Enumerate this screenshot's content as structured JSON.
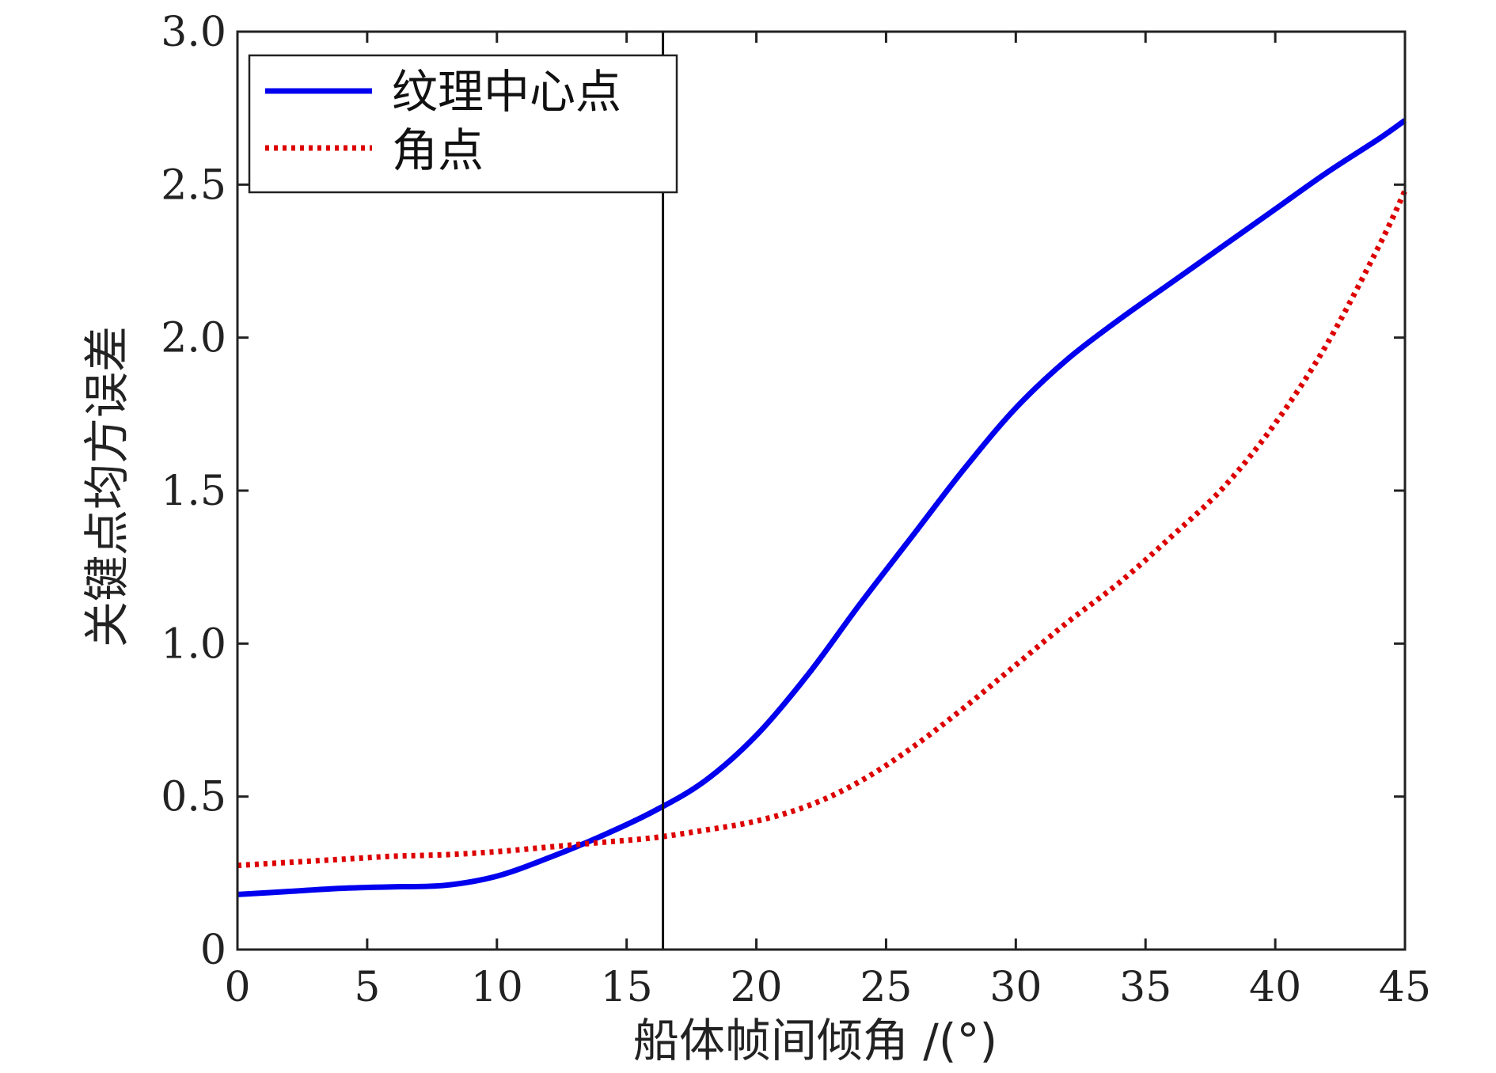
{
  "chart_data": {
    "type": "line",
    "xlabel": "船体帧间倾角 /(°)",
    "ylabel": "关键点均方误差",
    "xlim": [
      0,
      45
    ],
    "ylim": [
      0,
      3.0
    ],
    "xticks": [
      0,
      5,
      10,
      15,
      20,
      25,
      30,
      35,
      40,
      45
    ],
    "xtick_labels": [
      "0",
      "5",
      "10",
      "15",
      "20",
      "25",
      "30",
      "35",
      "40",
      "45"
    ],
    "yticks": [
      0,
      0.5,
      1.0,
      1.5,
      2.0,
      2.5,
      3.0
    ],
    "ytick_labels": [
      "0",
      "0.5",
      "1.0",
      "1.5",
      "2.0",
      "2.5",
      "3.0"
    ],
    "grid": false,
    "legend_position": "top-left",
    "vline_x": 16.4,
    "series": [
      {
        "name": "纹理中心点",
        "color": "#0000ee",
        "style": "solid",
        "x": [
          0,
          2,
          4,
          6,
          8,
          10,
          12,
          14,
          16,
          18,
          20,
          22,
          24,
          26,
          28,
          30,
          32,
          34,
          36,
          38,
          40,
          42,
          44,
          45
        ],
        "y": [
          0.18,
          0.19,
          0.2,
          0.205,
          0.21,
          0.24,
          0.3,
          0.37,
          0.45,
          0.55,
          0.7,
          0.9,
          1.13,
          1.35,
          1.57,
          1.77,
          1.93,
          2.06,
          2.18,
          2.3,
          2.42,
          2.54,
          2.65,
          2.71
        ]
      },
      {
        "name": "角点",
        "color": "#dd0000",
        "style": "dotted",
        "x": [
          0,
          2,
          4,
          6,
          8,
          10,
          12,
          14,
          16,
          18,
          20,
          22,
          24,
          26,
          28,
          30,
          32,
          34,
          36,
          38,
          40,
          42,
          44,
          45
        ],
        "y": [
          0.275,
          0.285,
          0.295,
          0.305,
          0.31,
          0.32,
          0.335,
          0.35,
          0.365,
          0.39,
          0.42,
          0.47,
          0.55,
          0.66,
          0.79,
          0.93,
          1.07,
          1.2,
          1.35,
          1.51,
          1.72,
          1.98,
          2.3,
          2.48
        ]
      }
    ]
  }
}
